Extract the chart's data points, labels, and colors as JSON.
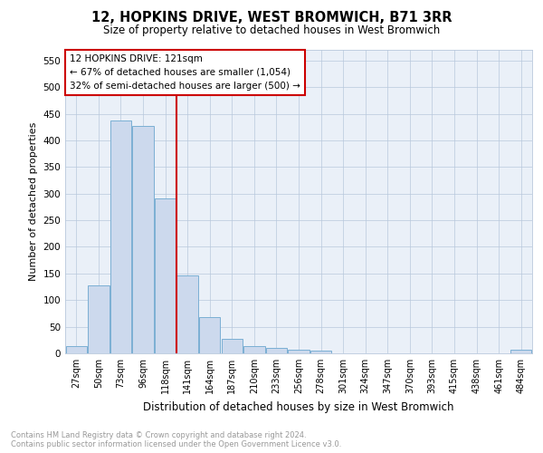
{
  "title": "12, HOPKINS DRIVE, WEST BROMWICH, B71 3RR",
  "subtitle": "Size of property relative to detached houses in West Bromwich",
  "xlabel": "Distribution of detached houses by size in West Bromwich",
  "ylabel": "Number of detached properties",
  "bar_labels": [
    "27sqm",
    "50sqm",
    "73sqm",
    "96sqm",
    "118sqm",
    "141sqm",
    "164sqm",
    "187sqm",
    "210sqm",
    "233sqm",
    "256sqm",
    "278sqm",
    "301sqm",
    "324sqm",
    "347sqm",
    "370sqm",
    "393sqm",
    "415sqm",
    "438sqm",
    "461sqm",
    "484sqm"
  ],
  "bar_values": [
    14,
    128,
    438,
    427,
    291,
    147,
    68,
    28,
    13,
    10,
    6,
    5,
    0,
    0,
    0,
    0,
    0,
    0,
    0,
    0,
    6
  ],
  "bar_color": "#ccd9ed",
  "bar_edge_color": "#7bafd4",
  "vline_x": 4.5,
  "vline_color": "#cc0000",
  "annotation_text": "12 HOPKINS DRIVE: 121sqm\n← 67% of detached houses are smaller (1,054)\n32% of semi-detached houses are larger (500) →",
  "annotation_box_color": "#ffffff",
  "annotation_box_edge": "#cc0000",
  "ylim": [
    0,
    570
  ],
  "yticks": [
    0,
    50,
    100,
    150,
    200,
    250,
    300,
    350,
    400,
    450,
    500,
    550
  ],
  "footer_line1": "Contains HM Land Registry data © Crown copyright and database right 2024.",
  "footer_line2": "Contains public sector information licensed under the Open Government Licence v3.0.",
  "bg_color": "#eaf0f8"
}
